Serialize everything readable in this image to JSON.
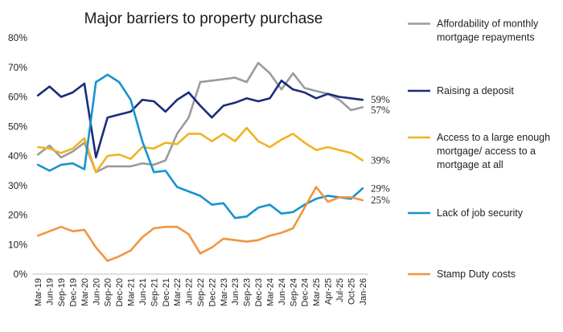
{
  "chart_data": {
    "type": "line",
    "title": "Major barriers to property purchase",
    "xlabel": "",
    "ylabel": "",
    "ylim": [
      0,
      80
    ],
    "y_ticks": [
      "0%",
      "10%",
      "20%",
      "30%",
      "40%",
      "50%",
      "60%",
      "70%",
      "80%"
    ],
    "grid": false,
    "legend_position": "right",
    "categories": [
      "Mar-19",
      "Jun-19",
      "Sep-19",
      "Dec-19",
      "Mar-20",
      "Jun-20",
      "Sep-20",
      "Dec-20",
      "Mar-21",
      "Jun-21",
      "Sep-21",
      "Dec-21",
      "Mar-22",
      "Jun-22",
      "Sep-22",
      "Dec-22",
      "Mar-23",
      "Jun-23",
      "Sep-23",
      "Dec-23",
      "Mar-24",
      "Jun-24",
      "Sep-24",
      "Dec-24",
      "Mar-25",
      "Apr-25",
      "Jul-25",
      "Oct-25",
      "Jan-26"
    ],
    "x_tick_labels": [
      "Mar-19",
      "Jun-19",
      "Sep-19",
      "Dec-19",
      "Mar-20",
      "Jun-20",
      "Sep-20",
      "Dec-20",
      "Mar-21",
      "Jun-21",
      "Sep-21",
      "Dec-21",
      "Mar-22",
      "Jun-22",
      "Sep-22",
      "Dec-22",
      "Mar-23",
      "Jun-23",
      "Sep-23",
      "Dec-23",
      "Mar-24",
      "Jun-24",
      "Sep-24",
      "Dec-24",
      "Mar-25",
      "Apr-25",
      "Jul-25",
      "Oct-25",
      "Jan-26"
    ],
    "series": [
      {
        "name": "Affordability of monthly mortgage repayments",
        "name_lines": [
          "Affordability of monthly",
          "mortgage repayments"
        ],
        "color": "#9b9b9b",
        "values": [
          40.5,
          43.5,
          39.5,
          41.5,
          44.5,
          34.5,
          36.5,
          36.5,
          36.5,
          37.5,
          37.0,
          38.5,
          47.5,
          53.0,
          65.0,
          65.5,
          66.0,
          66.5,
          65.0,
          71.5,
          68.0,
          62.5,
          68.0,
          63.0,
          62.0,
          61.0,
          59.0,
          55.5,
          56.5
        ],
        "end_label": "57%"
      },
      {
        "name": "Raising a deposit",
        "name_lines": [
          "Raising a deposit"
        ],
        "color": "#1b2c7a",
        "values": [
          60.5,
          63.5,
          60.0,
          61.5,
          64.5,
          39.5,
          53.0,
          54.0,
          55.0,
          59.0,
          58.5,
          55.0,
          59.0,
          61.5,
          57.0,
          53.0,
          57.0,
          58.0,
          59.5,
          58.5,
          59.5,
          65.5,
          62.5,
          61.5,
          59.5,
          61.0,
          60.0,
          59.5,
          59.0
        ],
        "end_label": "59%"
      },
      {
        "name": "Access to a large enough mortgage/ access to a mortgage at all",
        "name_lines": [
          "Access to a large enough",
          "mortgage/ access to a",
          "mortgage at all"
        ],
        "color": "#f0b323",
        "values": [
          43.0,
          42.5,
          41.0,
          42.5,
          46.0,
          34.5,
          40.0,
          40.5,
          39.0,
          43.0,
          42.5,
          44.5,
          44.0,
          47.5,
          47.5,
          45.0,
          47.5,
          45.0,
          49.5,
          45.0,
          43.0,
          45.5,
          47.5,
          44.5,
          42.0,
          43.0,
          42.0,
          41.0,
          38.5
        ],
        "end_label": "39%"
      },
      {
        "name": "Lack of job security",
        "name_lines": [
          "Lack of job security"
        ],
        "color": "#1893cd",
        "values": [
          37.0,
          35.0,
          37.0,
          37.5,
          35.5,
          65.0,
          67.5,
          65.0,
          59.0,
          45.0,
          34.5,
          35.0,
          29.5,
          28.0,
          26.5,
          23.5,
          24.0,
          19.0,
          19.5,
          22.5,
          23.5,
          20.5,
          21.0,
          23.5,
          25.5,
          26.5,
          26.0,
          25.5,
          29.0
        ],
        "end_label": "29%"
      },
      {
        "name": "Stamp Duty costs",
        "name_lines": [
          "Stamp Duty costs"
        ],
        "color": "#f0953f",
        "values": [
          13.0,
          14.5,
          16.0,
          14.5,
          15.0,
          9.0,
          4.5,
          6.0,
          8.0,
          12.5,
          15.5,
          16.0,
          16.0,
          13.5,
          7.0,
          9.0,
          12.0,
          11.5,
          11.0,
          11.5,
          13.0,
          14.0,
          15.5,
          22.5,
          29.5,
          24.5,
          26.0,
          26.0,
          25.0
        ],
        "end_label": "25%"
      }
    ]
  }
}
